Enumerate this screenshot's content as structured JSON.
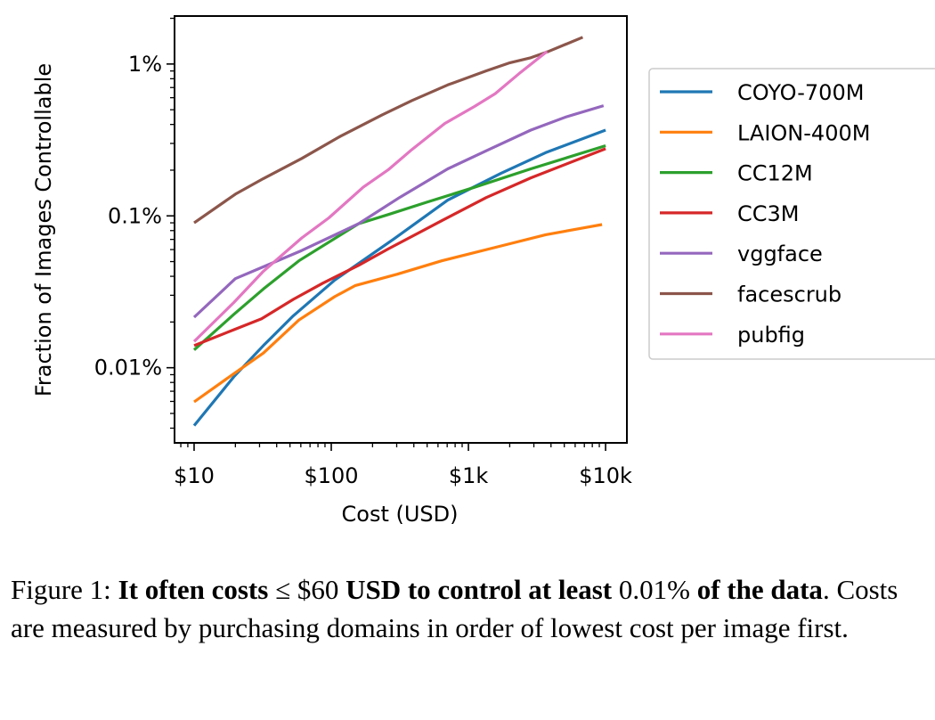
{
  "chart_data": {
    "type": "line",
    "xlabel": "Cost (USD)",
    "ylabel": "Fraction of Images Controllable",
    "xscale": "log",
    "yscale": "log",
    "xlim": [
      7.2,
      14300
    ],
    "ylim": [
      0.0032,
      2.07
    ],
    "xticks": [
      {
        "value": 10,
        "label": "$10"
      },
      {
        "value": 100,
        "label": "$100"
      },
      {
        "value": 1000,
        "label": "$1k"
      },
      {
        "value": 10000,
        "label": "$10k"
      }
    ],
    "yticks": [
      {
        "value": 0.01,
        "label": "0.01%"
      },
      {
        "value": 0.1,
        "label": "0.1%"
      },
      {
        "value": 1,
        "label": "1%"
      }
    ],
    "legend_position": "right-outside",
    "series": [
      {
        "name": "COYO-700M",
        "color": "#1f77b4",
        "x": [
          10,
          19.5,
          32,
          53,
          106,
          288,
          706,
          1730,
          3656,
          10000
        ],
        "y": [
          0.00416,
          0.00873,
          0.014,
          0.022,
          0.0378,
          0.0708,
          0.127,
          0.191,
          0.261,
          0.367
        ]
      },
      {
        "name": "LAION-400M",
        "color": "#ff7f0e",
        "x": [
          10,
          19.5,
          32,
          58,
          106,
          150,
          303,
          638,
          1730,
          3656,
          9420
        ],
        "y": [
          0.00596,
          0.00914,
          0.0125,
          0.0206,
          0.0294,
          0.0348,
          0.0413,
          0.0506,
          0.0634,
          0.0752,
          0.0877
        ]
      },
      {
        "name": "CC12M",
        "color": "#2ca02c",
        "x": [
          10,
          19.5,
          32,
          58,
          158,
          260,
          498,
          1050,
          2851,
          10000
        ],
        "y": [
          0.0131,
          0.0225,
          0.033,
          0.0506,
          0.0887,
          0.102,
          0.123,
          0.152,
          0.204,
          0.29
        ]
      },
      {
        "name": "CC3M",
        "color": "#d62728",
        "x": [
          10,
          19.5,
          31,
          53,
          87,
          158,
          260,
          638,
          1349,
          2851,
          10000
        ],
        "y": [
          0.014,
          0.0178,
          0.021,
          0.0282,
          0.0361,
          0.0472,
          0.0605,
          0.0929,
          0.132,
          0.178,
          0.277
        ]
      },
      {
        "name": "vggface",
        "color": "#9467bd",
        "x": [
          10,
          20,
          32,
          61,
          158,
          318,
          706,
          1416,
          2851,
          5176,
          9660
        ],
        "y": [
          0.0215,
          0.0386,
          0.0462,
          0.0592,
          0.0887,
          0.133,
          0.204,
          0.274,
          0.367,
          0.449,
          0.532
        ]
      },
      {
        "name": "facescrub",
        "color": "#8c564b",
        "x": [
          10,
          20,
          32,
          61,
          117,
          236,
          388,
          706,
          1349,
          2009,
          2851,
          3837,
          6808
        ],
        "y": [
          0.09,
          0.139,
          0.176,
          0.239,
          0.335,
          0.463,
          0.575,
          0.728,
          0.902,
          1.02,
          1.1,
          1.21,
          1.5
        ]
      },
      {
        "name": "pubfig",
        "color": "#e377c2",
        "x": [
          10,
          19.5,
          32,
          61,
          96,
          171,
          260,
          388,
          671,
          1107,
          1567,
          2333,
          3741
        ],
        "y": [
          0.0149,
          0.0269,
          0.0432,
          0.0716,
          0.097,
          0.1545,
          0.201,
          0.274,
          0.406,
          0.525,
          0.638,
          0.863,
          1.21
        ]
      }
    ]
  },
  "caption": {
    "label": "Figure 1:",
    "bold1": "It often costs",
    "math1": "≤ $60",
    "bold2": "USD to control at least",
    "math2": "0.01%",
    "bold3": "of the data",
    "rest": ". Costs are measured by purchasing domains in order of lowest cost per image first."
  }
}
